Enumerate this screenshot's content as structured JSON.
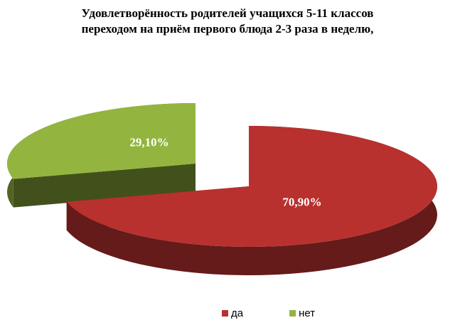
{
  "chart_data": {
    "type": "pie",
    "title": "Удовлетворённость родителей учащихся 5-11 классов переходом на приём первого блюда 2-3 раза в неделю,",
    "categories": [
      "да",
      "нет"
    ],
    "values": [
      70.9,
      29.1
    ],
    "value_labels": [
      "70,90%",
      "29,10%"
    ],
    "colors": [
      "#b8312f",
      "#93b53f"
    ],
    "legend": "bottom"
  }
}
